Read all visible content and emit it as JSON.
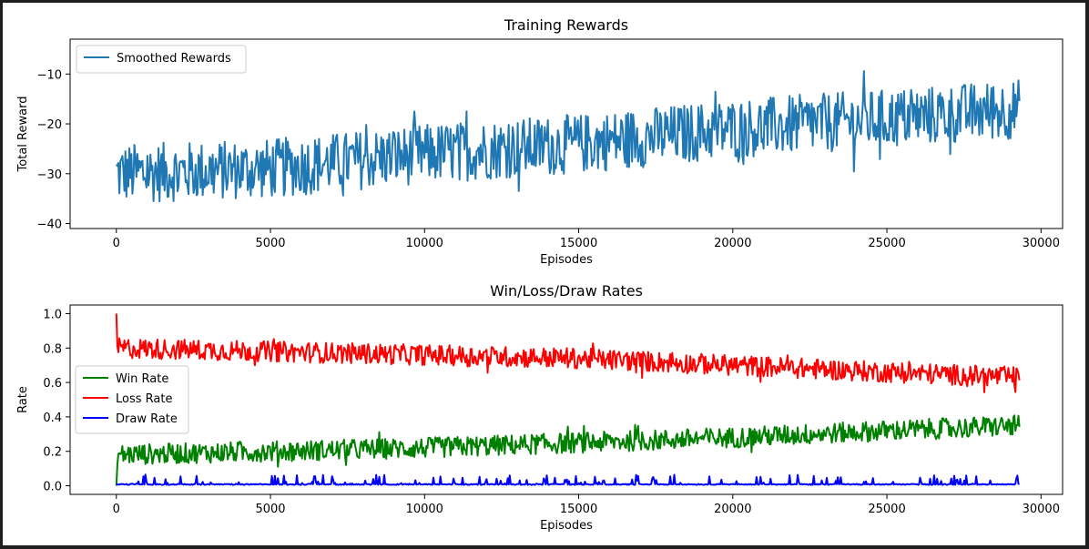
{
  "colors": {
    "smoothed": "#1f77b4",
    "win": "#008000",
    "loss": "#ff0000",
    "draw": "#0000ff"
  },
  "chart_data": [
    {
      "type": "line",
      "title": "Training Rewards",
      "xlabel": "Episodes",
      "ylabel": "Total Reward",
      "xlim": [
        -1500,
        30700
      ],
      "ylim": [
        -41,
        -3
      ],
      "xticks": [
        0,
        5000,
        10000,
        15000,
        20000,
        25000,
        30000
      ],
      "yticks": [
        -40,
        -30,
        -20,
        -10
      ],
      "grid": false,
      "legend": "top-left",
      "x_max": 29300,
      "series": [
        {
          "name": "Smoothed Rewards",
          "color_key": "smoothed",
          "trend": [
            [
              0,
              -30
            ],
            [
              5000,
              -29
            ],
            [
              10000,
              -26
            ],
            [
              15000,
              -24
            ],
            [
              20000,
              -21
            ],
            [
              25000,
              -19
            ],
            [
              29300,
              -17
            ]
          ],
          "noise": 6
        }
      ]
    },
    {
      "type": "line",
      "title": "Win/Loss/Draw Rates",
      "xlabel": "Episodes",
      "ylabel": "Rate",
      "xlim": [
        -1500,
        30700
      ],
      "ylim": [
        -0.05,
        1.05
      ],
      "xticks": [
        0,
        5000,
        10000,
        15000,
        20000,
        25000,
        30000
      ],
      "yticks": [
        0.0,
        0.2,
        0.4,
        0.6,
        0.8,
        1.0
      ],
      "grid": false,
      "legend": "center-left",
      "x_max": 29300,
      "series": [
        {
          "name": "Win Rate",
          "color_key": "win",
          "trend": [
            [
              0,
              0.18
            ],
            [
              5000,
              0.2
            ],
            [
              10000,
              0.22
            ],
            [
              15000,
              0.25
            ],
            [
              20000,
              0.28
            ],
            [
              25000,
              0.32
            ],
            [
              29300,
              0.35
            ]
          ],
          "noise": 0.06
        },
        {
          "name": "Loss Rate",
          "color_key": "loss",
          "trend": [
            [
              0,
              0.8
            ],
            [
              5000,
              0.78
            ],
            [
              10000,
              0.76
            ],
            [
              15000,
              0.74
            ],
            [
              20000,
              0.7
            ],
            [
              25000,
              0.66
            ],
            [
              29300,
              0.63
            ]
          ],
          "noise": 0.06
        },
        {
          "name": "Draw Rate",
          "color_key": "draw",
          "trend": [
            [
              0,
              0.02
            ],
            [
              10000,
              0.02
            ],
            [
              20000,
              0.02
            ],
            [
              29300,
              0.02
            ]
          ],
          "noise": 0.02
        }
      ]
    }
  ]
}
